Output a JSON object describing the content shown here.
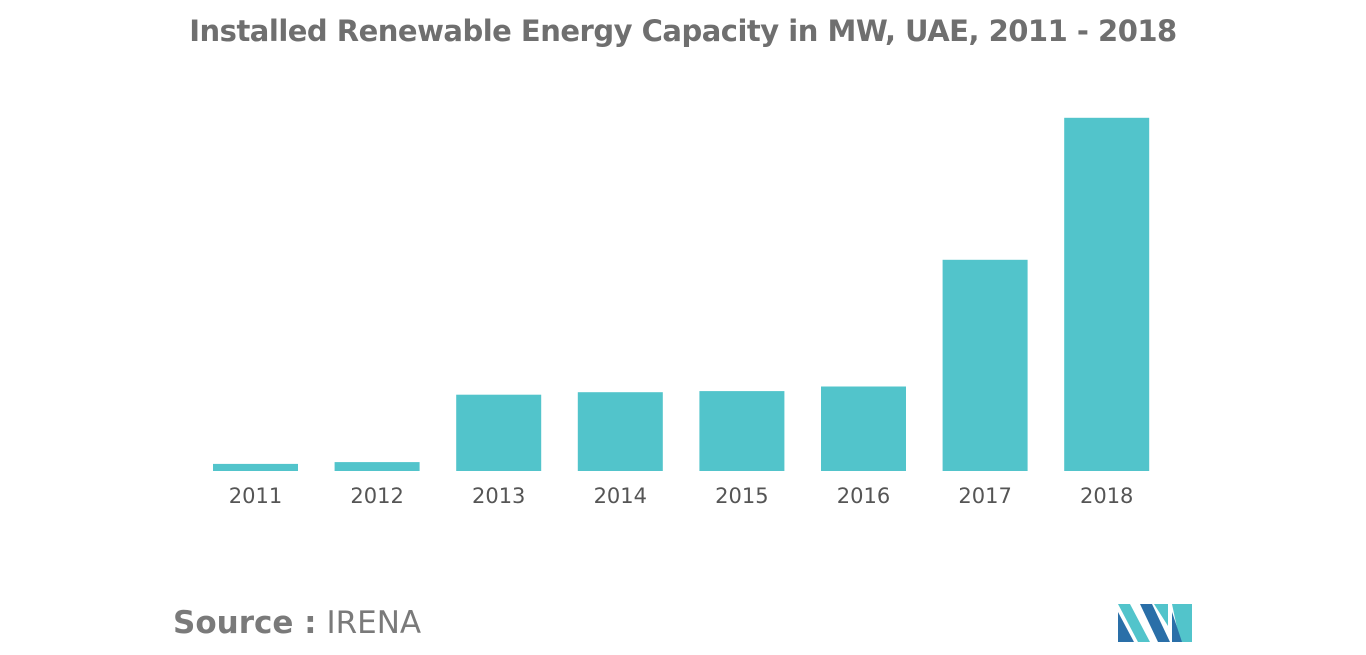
{
  "chart_data": {
    "type": "bar",
    "title": "Installed Renewable Energy Capacity in MW, UAE, 2011 - 2018",
    "categories": [
      "2011",
      "2012",
      "2013",
      "2014",
      "2015",
      "2016",
      "2017",
      "2018"
    ],
    "values": [
      20,
      25,
      215,
      222,
      225,
      238,
      595,
      995
    ],
    "ylim": [
      0,
      1000
    ],
    "xlabel": "",
    "ylabel": "",
    "grid": false,
    "bar_color": "#52c4cb"
  },
  "footer": {
    "source_label": "Source :",
    "source_value": "IRENA"
  },
  "logo": {
    "icon": "mordor-intelligence-logo-icon",
    "colors": [
      "#2a6fa8",
      "#52c4cb"
    ]
  }
}
